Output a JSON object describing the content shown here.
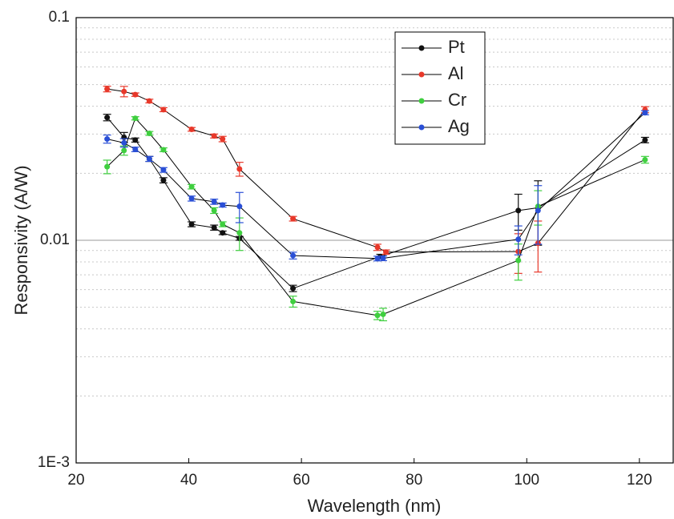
{
  "chart_data": {
    "type": "scatter-line",
    "xlabel": "Wavelength (nm)",
    "ylabel": "Responsivity (A/W)",
    "xlim": [
      20,
      126
    ],
    "xticks": [
      20,
      40,
      60,
      80,
      100,
      120
    ],
    "ylim": [
      0.001,
      0.1
    ],
    "yticks": [
      {
        "value": 0.001,
        "label": "1E-3"
      },
      0.01,
      0.1
    ],
    "yminor": [
      0.002,
      0.003,
      0.004,
      0.005,
      0.006,
      0.007,
      0.008,
      0.009,
      0.02,
      0.03,
      0.04,
      0.05,
      0.06,
      0.07,
      0.08,
      0.09
    ],
    "log_y": true,
    "grid": true,
    "line_color": "#000000",
    "legend": "upper center",
    "series": [
      {
        "name": "Pt",
        "color": "#111111",
        "x": [
          25.5,
          28.5,
          30.5,
          33,
          35.5,
          40.5,
          44.5,
          46,
          49,
          58.5,
          74,
          98.5,
          102,
          121
        ],
        "values": [
          0.0356,
          0.029,
          0.0282,
          0.0232,
          0.0186,
          0.0118,
          0.0114,
          0.0108,
          0.0102,
          0.00608,
          0.00845,
          0.0136,
          0.014,
          0.0282
        ],
        "errors": [
          0.0012,
          0.0015,
          0.0006,
          0.0006,
          0.0005,
          0.0003,
          0.0003,
          0.0002,
          0.0002,
          0.0002,
          0.0002,
          0.0025,
          0.0045,
          0.0008
        ]
      },
      {
        "name": "Al",
        "color": "#e8382a",
        "x": [
          25.5,
          28.5,
          30.5,
          33,
          35.5,
          40.5,
          44.5,
          46,
          49,
          58.5,
          73.5,
          75,
          98.5,
          102,
          121
        ],
        "values": [
          0.0478,
          0.0466,
          0.0451,
          0.0422,
          0.0386,
          0.0315,
          0.0294,
          0.0285,
          0.0209,
          0.0125,
          0.0093,
          0.00885,
          0.0089,
          0.0097,
          0.0386
        ],
        "errors": [
          0.0014,
          0.0025,
          0.0008,
          0.0008,
          0.0008,
          0.0006,
          0.0006,
          0.0008,
          0.0015,
          0.0003,
          0.0003,
          0.0002,
          0.0018,
          0.0025,
          0.0012
        ]
      },
      {
        "name": "Cr",
        "color": "#3fcf3f",
        "x": [
          25.5,
          28.5,
          30.5,
          33,
          35.5,
          40.5,
          44.5,
          46,
          49,
          58.5,
          73.5,
          74.5,
          98.5,
          102,
          121
        ],
        "values": [
          0.0214,
          0.0253,
          0.0353,
          0.0302,
          0.0255,
          0.0174,
          0.0136,
          0.0118,
          0.0108,
          0.00531,
          0.0046,
          0.00465,
          0.00812,
          0.0142,
          0.023
        ],
        "errors": [
          0.0015,
          0.0012,
          0.0006,
          0.0006,
          0.0005,
          0.0004,
          0.0004,
          0.0003,
          0.0018,
          0.0003,
          0.0002,
          0.0003,
          0.0015,
          0.0025,
          0.0008
        ]
      },
      {
        "name": "Ag",
        "color": "#2a4fd6",
        "x": [
          25.5,
          28.5,
          30.5,
          33,
          35.5,
          40.5,
          44.5,
          46,
          49,
          58.5,
          73.5,
          74.5,
          98.5,
          102,
          121
        ],
        "values": [
          0.0285,
          0.0274,
          0.0256,
          0.0232,
          0.0207,
          0.0154,
          0.0149,
          0.0144,
          0.0142,
          0.00854,
          0.00828,
          0.0083,
          0.0101,
          0.0136,
          0.0374
        ],
        "errors": [
          0.0012,
          0.0012,
          0.0006,
          0.0006,
          0.0005,
          0.0004,
          0.0004,
          0.0003,
          0.0022,
          0.0003,
          0.0002,
          0.0002,
          0.0015,
          0.004,
          0.0008
        ]
      }
    ]
  }
}
